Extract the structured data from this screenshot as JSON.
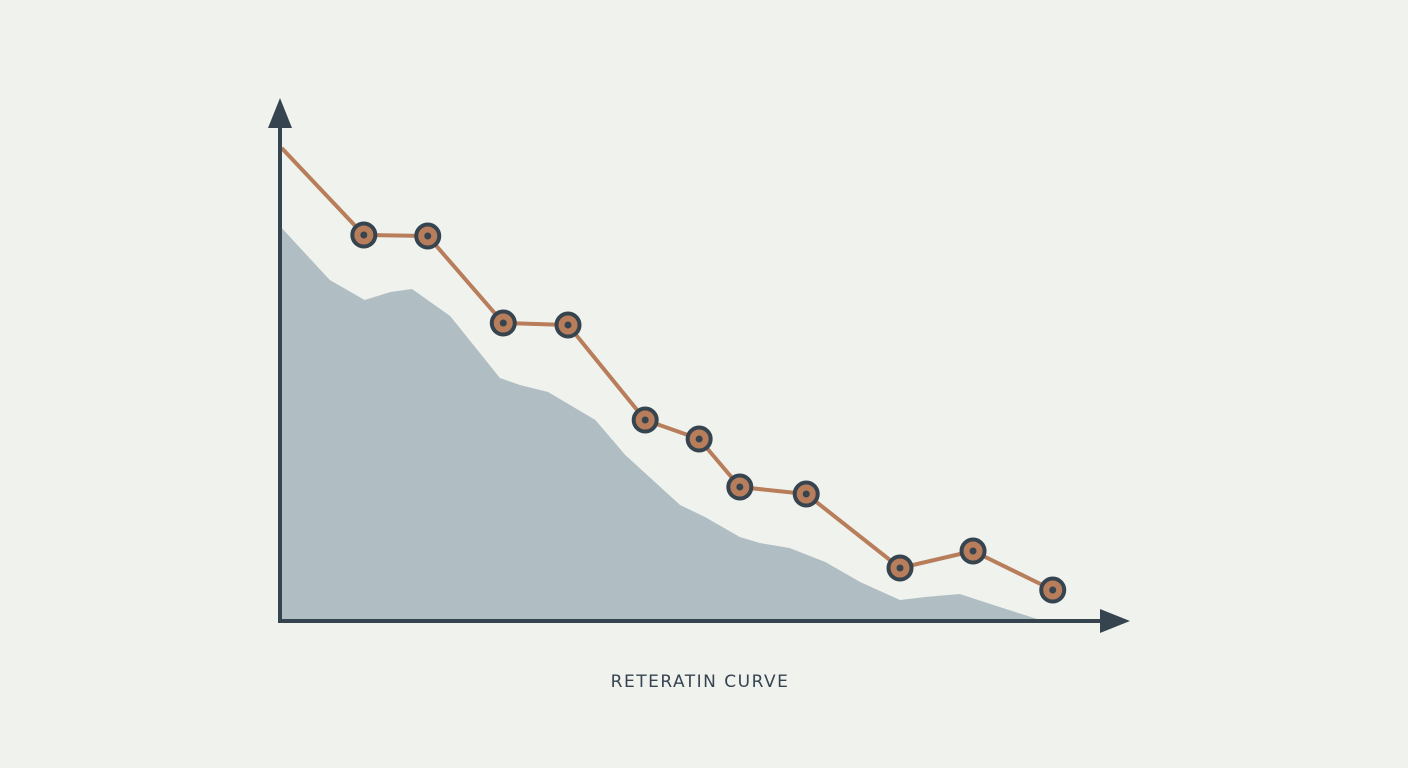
{
  "chart_data": {
    "type": "line",
    "title": "RETERATIN CURVE",
    "xlim": [
      0,
      100
    ],
    "ylim": [
      0,
      100
    ],
    "series": [
      {
        "style": "area",
        "color": "#b0bec4",
        "x": [
          0.2,
          6,
          10.2,
          13.3,
          15.9,
          20.5,
          26.5,
          28.9,
          32.3,
          38,
          41.6,
          48.2,
          51.2,
          55.4,
          57.8,
          61.4,
          65.7,
          69.9,
          74.7,
          77.7,
          81.9,
          86.7,
          91.6
        ],
        "values": [
          78.4,
          68,
          64,
          65.6,
          66.2,
          60.8,
          48.4,
          47,
          45.6,
          40,
          33,
          23,
          20.6,
          16.6,
          15.4,
          14.4,
          11.6,
          7.6,
          4,
          4.6,
          5.2,
          2.6,
          0
        ]
      },
      {
        "style": "line",
        "color": "#b87d5a",
        "x": [
          0.2,
          10.1,
          17.8,
          26.9,
          34.7,
          44,
          50.5,
          55.4,
          63.4,
          74.7,
          83.5,
          93.1
        ],
        "values": [
          94.4,
          77,
          76.8,
          59.4,
          59,
          40,
          36.2,
          26.6,
          25.2,
          10.4,
          13.8,
          6
        ],
        "markers": [
          false,
          true,
          true,
          true,
          true,
          true,
          true,
          true,
          true,
          true,
          true,
          true
        ]
      }
    ]
  }
}
